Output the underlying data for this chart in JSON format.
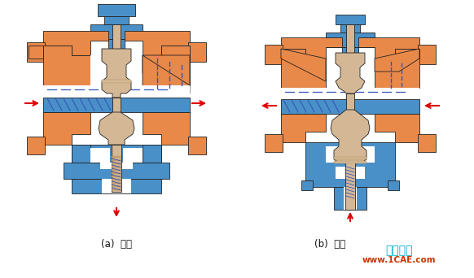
{
  "bg_color": "#ffffff",
  "orange_color": "#E8894A",
  "blue_color": "#4A90C8",
  "tan_color": "#D4B896",
  "tan_dark": "#C8A070",
  "red_color": "#DD0000",
  "blue_line_color": "#3355BB",
  "outline_color": "#222222",
  "label_a": "(a)  分流",
  "label_b": "(b)  合流",
  "watermark_text": "仿真在线",
  "watermark_url": "www.1CAE.com",
  "watermark_color": "#00AACC",
  "watermark_url_color": "#CC3300",
  "fig_width": 5.82,
  "fig_height": 3.42,
  "dpi": 100
}
